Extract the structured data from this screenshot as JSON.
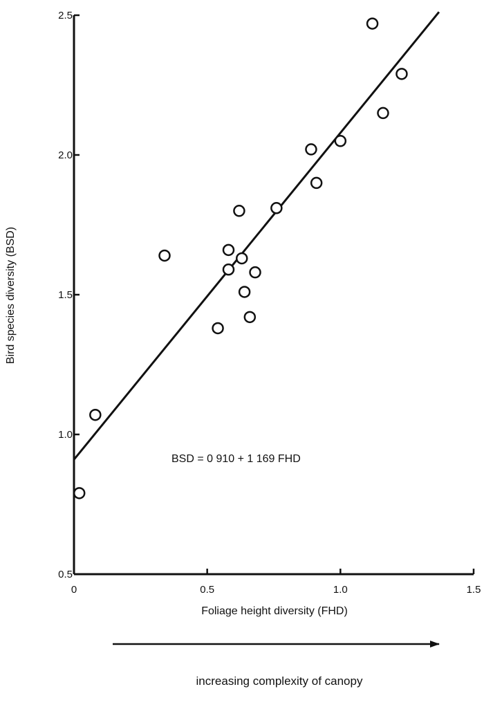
{
  "chart_data": {
    "type": "scatter",
    "title": "",
    "xlabel": "Foliage height diversity (FHD)",
    "ylabel": "Bird species diversity (BSD)",
    "xlim": [
      0,
      1.5
    ],
    "ylim": [
      0.5,
      2.5
    ],
    "x_ticks": [
      "0",
      "0.5",
      "1.0",
      "1.5"
    ],
    "y_ticks": [
      "0.5",
      "1.0",
      "1.5",
      "2.0",
      "2.5"
    ],
    "grid": false,
    "legend": "none",
    "marker": "open-circle",
    "series": [
      {
        "points": [
          {
            "x": 0.02,
            "y": 0.79
          },
          {
            "x": 0.08,
            "y": 1.07
          },
          {
            "x": 0.34,
            "y": 1.64
          },
          {
            "x": 0.54,
            "y": 1.38
          },
          {
            "x": 0.58,
            "y": 1.66
          },
          {
            "x": 0.58,
            "y": 1.59
          },
          {
            "x": 0.62,
            "y": 1.8
          },
          {
            "x": 0.63,
            "y": 1.63
          },
          {
            "x": 0.64,
            "y": 1.51
          },
          {
            "x": 0.66,
            "y": 1.42
          },
          {
            "x": 0.68,
            "y": 1.58
          },
          {
            "x": 0.76,
            "y": 1.81
          },
          {
            "x": 0.89,
            "y": 2.02
          },
          {
            "x": 0.91,
            "y": 1.9
          },
          {
            "x": 1.0,
            "y": 2.05
          },
          {
            "x": 1.12,
            "y": 2.47
          },
          {
            "x": 1.16,
            "y": 2.15
          },
          {
            "x": 1.23,
            "y": 2.29
          }
        ]
      }
    ],
    "regression": {
      "intercept": 0.91,
      "slope": 1.169,
      "x_range": [
        0,
        1.37
      ]
    },
    "annotations": {
      "equation": "BSD = 0 910 + 1 169 FHD",
      "arrow_caption": "increasing complexity of canopy"
    }
  }
}
